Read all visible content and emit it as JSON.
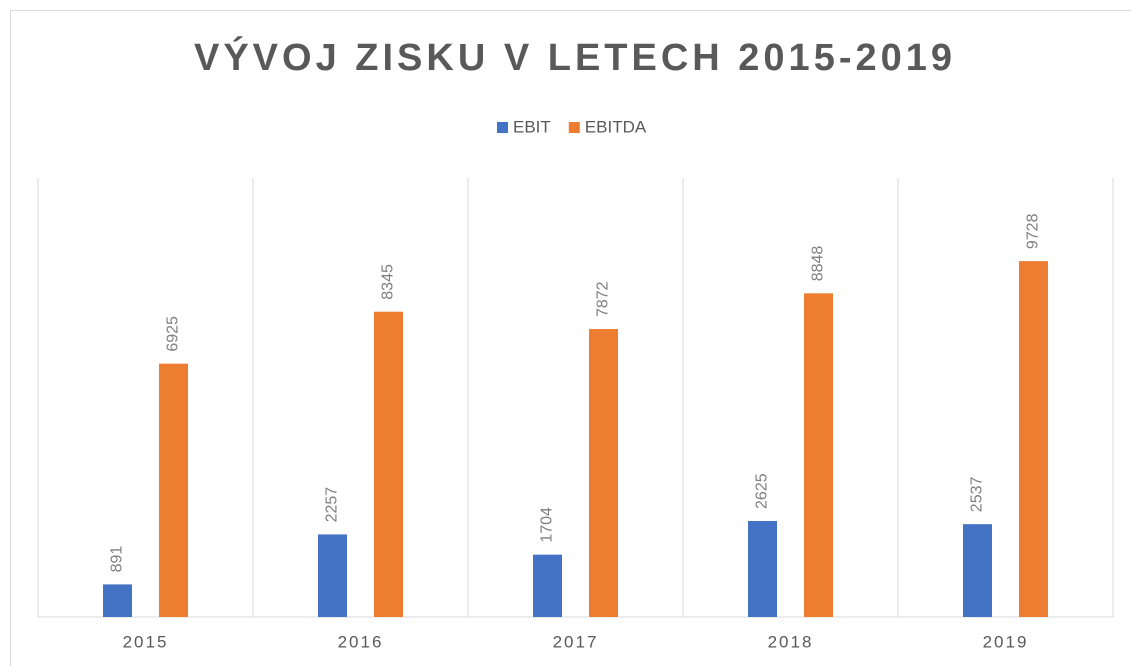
{
  "chart_data": {
    "type": "bar",
    "title": "VÝVOJ ZISKU V LETECH 2015-2019",
    "categories": [
      "2015",
      "2016",
      "2017",
      "2018",
      "2019"
    ],
    "series": [
      {
        "name": "EBIT",
        "color": "#4472c4",
        "values": [
          891,
          2257,
          1704,
          2625,
          2537
        ]
      },
      {
        "name": "EBITDA",
        "color": "#ed7d31",
        "values": [
          6925,
          8345,
          7872,
          8848,
          9728
        ]
      }
    ],
    "ylim": [
      0,
      12000
    ],
    "legend": "top"
  }
}
